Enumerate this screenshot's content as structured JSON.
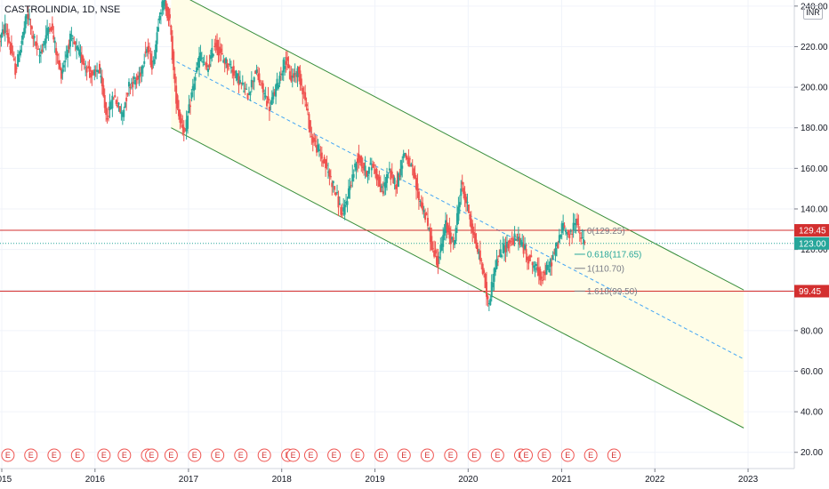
{
  "header": {
    "symbol_title": "CASTROLINDIA, 1D, NSE",
    "currency": "INR"
  },
  "chart_data": {
    "type": "candlestick",
    "title": "CASTROLINDIA, 1D, NSE",
    "y_axis": {
      "ticks": [
        20,
        40,
        60,
        80,
        100,
        120,
        140,
        160,
        180,
        200,
        220,
        240
      ],
      "tick_labels": [
        "20.00",
        "40.00",
        "60.00",
        "80.00",
        "100.00",
        "120.00",
        "140.00",
        "160.00",
        "180.00",
        "200.00",
        "220.00",
        "240.00"
      ],
      "range": [
        12,
        243
      ]
    },
    "x_axis": {
      "ticks": [
        "2015",
        "2016",
        "2017",
        "2018",
        "2019",
        "2020",
        "2021",
        "2022",
        "2023"
      ],
      "range": [
        "2014-12-25",
        "2023-07-01"
      ]
    },
    "price_series": [
      [
        "2014-12-25",
        222
      ],
      [
        "2015-01-20",
        230
      ],
      [
        "2015-03-01",
        208
      ],
      [
        "2015-04-15",
        236
      ],
      [
        "2015-06-01",
        215
      ],
      [
        "2015-07-15",
        232
      ],
      [
        "2015-08-25",
        206
      ],
      [
        "2015-10-01",
        224
      ],
      [
        "2015-11-15",
        214
      ],
      [
        "2015-12-30",
        205
      ],
      [
        "2016-01-20",
        210
      ],
      [
        "2016-02-20",
        185
      ],
      [
        "2016-03-20",
        196
      ],
      [
        "2016-04-20",
        186
      ],
      [
        "2016-05-20",
        202
      ],
      [
        "2016-06-25",
        204
      ],
      [
        "2016-07-25",
        220
      ],
      [
        "2016-08-20",
        210
      ],
      [
        "2016-09-15",
        238
      ],
      [
        "2016-10-05",
        242
      ],
      [
        "2016-10-25",
        232
      ],
      [
        "2016-11-15",
        198
      ],
      [
        "2016-12-01",
        185
      ],
      [
        "2016-12-25",
        178
      ],
      [
        "2017-01-20",
        198
      ],
      [
        "2017-02-20",
        216
      ],
      [
        "2017-03-20",
        208
      ],
      [
        "2017-04-20",
        222
      ],
      [
        "2017-05-20",
        214
      ],
      [
        "2017-06-20",
        210
      ],
      [
        "2017-07-20",
        204
      ],
      [
        "2017-08-25",
        196
      ],
      [
        "2017-09-25",
        208
      ],
      [
        "2017-10-25",
        198
      ],
      [
        "2017-11-20",
        190
      ],
      [
        "2017-12-20",
        202
      ],
      [
        "2018-01-20",
        214
      ],
      [
        "2018-02-10",
        204
      ],
      [
        "2018-03-10",
        208
      ],
      [
        "2018-04-05",
        196
      ],
      [
        "2018-05-01",
        176
      ],
      [
        "2018-06-01",
        168
      ],
      [
        "2018-07-01",
        160
      ],
      [
        "2018-08-01",
        150
      ],
      [
        "2018-09-01",
        136
      ],
      [
        "2018-10-01",
        152
      ],
      [
        "2018-11-01",
        166
      ],
      [
        "2018-12-01",
        158
      ],
      [
        "2019-01-01",
        162
      ],
      [
        "2019-02-01",
        148
      ],
      [
        "2019-03-01",
        158
      ],
      [
        "2019-04-01",
        152
      ],
      [
        "2019-04-30",
        168
      ],
      [
        "2019-05-30",
        160
      ],
      [
        "2019-06-25",
        146
      ],
      [
        "2019-07-25",
        136
      ],
      [
        "2019-08-20",
        120
      ],
      [
        "2019-09-10",
        114
      ],
      [
        "2019-10-10",
        132
      ],
      [
        "2019-11-10",
        122
      ],
      [
        "2019-12-10",
        152
      ],
      [
        "2020-01-10",
        138
      ],
      [
        "2020-02-01",
        124
      ],
      [
        "2020-03-01",
        112
      ],
      [
        "2020-03-25",
        92
      ],
      [
        "2020-04-20",
        112
      ],
      [
        "2020-05-20",
        120
      ],
      [
        "2020-06-20",
        124
      ],
      [
        "2020-07-20",
        126
      ],
      [
        "2020-08-20",
        118
      ],
      [
        "2020-09-20",
        112
      ],
      [
        "2020-10-20",
        106
      ],
      [
        "2020-11-20",
        112
      ],
      [
        "2020-12-20",
        122
      ],
      [
        "2021-01-10",
        132
      ],
      [
        "2021-02-10",
        126
      ],
      [
        "2021-03-01",
        136
      ],
      [
        "2021-03-20",
        126
      ],
      [
        "2021-04-05",
        123
      ]
    ],
    "channel": {
      "upper": [
        [
          "2016-10-25",
          248
        ],
        [
          "2022-12-15",
          100
        ]
      ],
      "lower": [
        [
          "2016-10-25",
          180
        ],
        [
          "2022-12-15",
          32
        ]
      ],
      "median": [
        [
          "2016-10-25",
          214
        ],
        [
          "2022-12-15",
          66
        ]
      ]
    },
    "horizontal_levels": [
      {
        "value": 129.45,
        "label": "129.45",
        "color": "#d32f2f"
      },
      {
        "value": 99.45,
        "label": "99.45",
        "color": "#d32f2f"
      }
    ],
    "current_price": {
      "value": 123.0,
      "label": "123.00",
      "color": "#26a69a"
    },
    "fib_levels": [
      {
        "value": 129.25,
        "label": "0(129.25)",
        "color": "#787b86"
      },
      {
        "value": 117.65,
        "label": "0.618(117.65)",
        "color": "#26a69a"
      },
      {
        "value": 110.7,
        "label": "1(110.70)",
        "color": "#787b86"
      },
      {
        "value": 99.5,
        "label": "1.618(99.50)",
        "color": "#787b86"
      }
    ],
    "earnings_marker_dates": [
      "2015-01-25",
      "2015-04-25",
      "2015-07-25",
      "2015-10-25",
      "2016-02-05",
      "2016-04-25",
      "2016-07-25",
      "2016-08-10",
      "2016-10-25",
      "2017-01-25",
      "2017-04-25",
      "2017-07-25",
      "2017-10-25",
      "2018-01-25",
      "2018-02-15",
      "2018-04-25",
      "2018-07-25",
      "2018-10-25",
      "2019-01-25",
      "2019-04-25",
      "2019-07-25",
      "2019-10-25",
      "2020-01-25",
      "2020-04-25",
      "2020-07-25",
      "2020-08-15",
      "2020-10-25",
      "2021-01-25",
      "2021-04-25",
      "2021-07-25"
    ],
    "earnings_marker_label": "E",
    "colors": {
      "up": "#26a69a",
      "down": "#ef5350",
      "channel_line": "#388e3c",
      "channel_fill": "#fffde7",
      "median_line": "#42a5f5",
      "grid": "#f0f3fa"
    }
  }
}
